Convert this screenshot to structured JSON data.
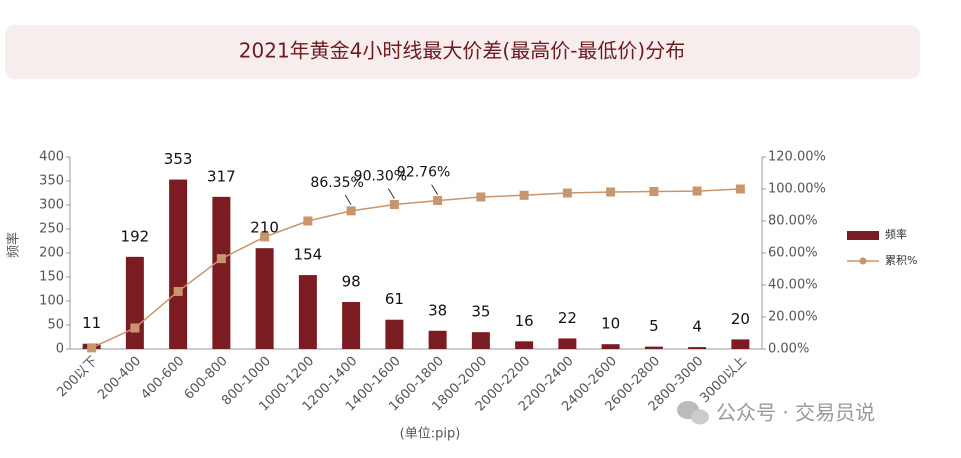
{
  "chart_data": {
    "type": "bar",
    "title": "2021年黄金4小时线最大价差(最高价-最低价)分布",
    "ylabel": "频率",
    "xlabel": "(单位:pip)",
    "watermark": "公众号 · 交易员说",
    "legend": "right",
    "categories": [
      "200以下",
      "200-400",
      "400-600",
      "600-800",
      "800-1000",
      "1000-1200",
      "1200-1400",
      "1400-1600",
      "1600-1800",
      "1800-2000",
      "2000-2200",
      "2200-2400",
      "2400-2600",
      "2600-2800",
      "2800-3000",
      "3000以上"
    ],
    "series": [
      {
        "name": "频率",
        "type": "bar",
        "color": "#7b1c22",
        "values": [
          11,
          192,
          353,
          317,
          210,
          154,
          98,
          61,
          38,
          35,
          16,
          22,
          10,
          5,
          4,
          20
        ]
      },
      {
        "name": "累积%",
        "type": "line",
        "axis": "y2",
        "color": "#c9956c",
        "values": [
          0.71,
          13.13,
          35.96,
          56.47,
          70.05,
          80.01,
          86.35,
          90.3,
          92.76,
          95.02,
          96.06,
          97.48,
          98.12,
          98.45,
          98.71,
          100.0
        ],
        "value_labels": [
          null,
          null,
          null,
          null,
          null,
          null,
          "86.35%",
          "90.30%",
          "92.76%",
          null,
          null,
          null,
          null,
          null,
          null,
          null
        ]
      }
    ],
    "ylim": [
      0,
      400
    ],
    "yticks": [
      0,
      50,
      100,
      150,
      200,
      250,
      300,
      350,
      400
    ],
    "y2lim": [
      0,
      120
    ],
    "y2ticks": [
      {
        "value": 0,
        "label": "0.00%"
      },
      {
        "value": 20,
        "label": "20.00%"
      },
      {
        "value": 40,
        "label": "40.00%"
      },
      {
        "value": 60,
        "label": "60.00%"
      },
      {
        "value": 80,
        "label": "80.00%"
      },
      {
        "value": 100,
        "label": "100.00%"
      },
      {
        "value": 120,
        "label": "120.00%"
      }
    ]
  }
}
